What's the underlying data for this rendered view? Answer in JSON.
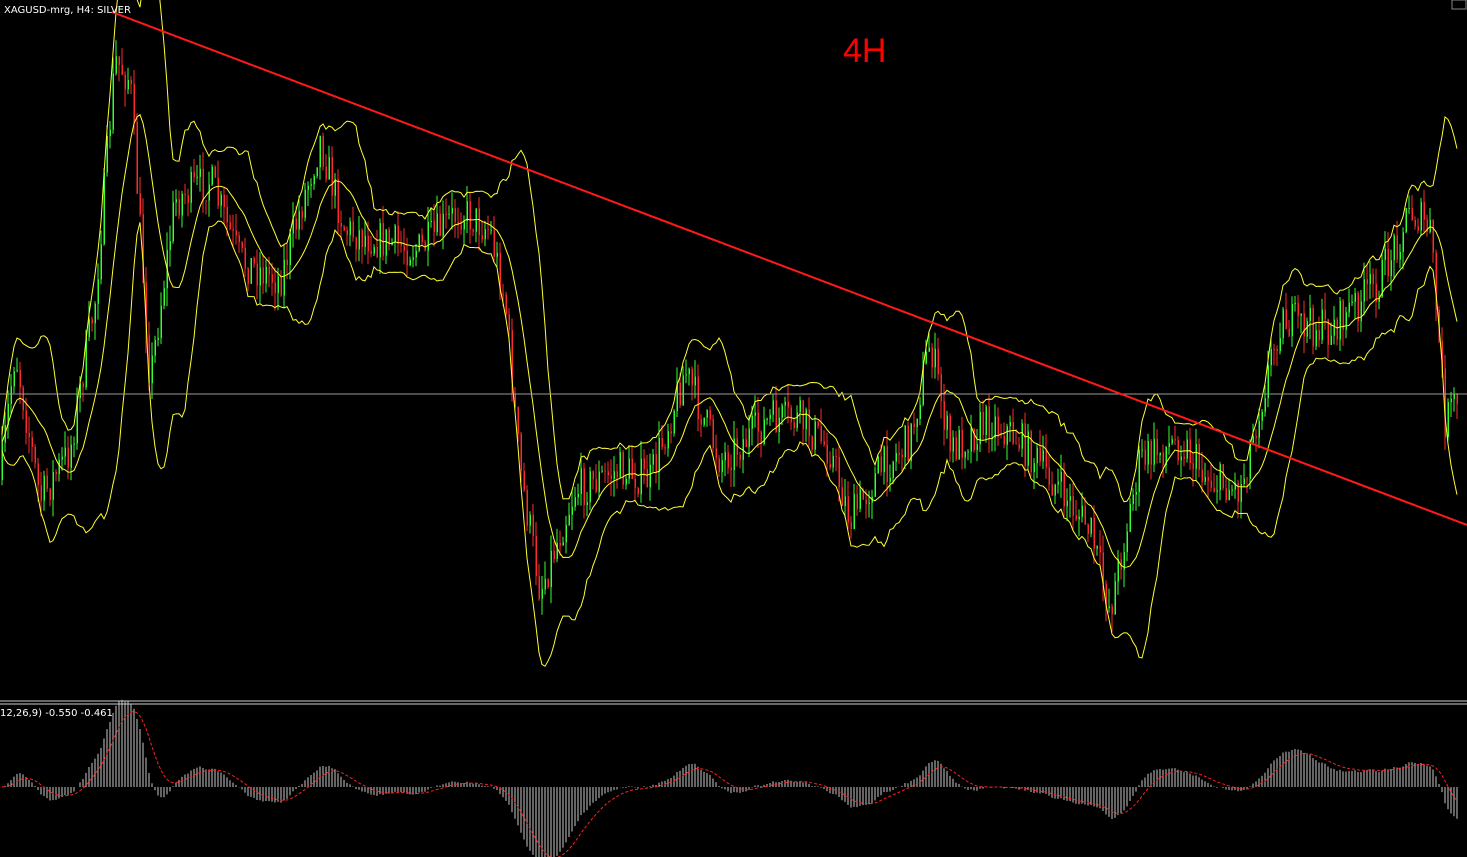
{
  "header": {
    "title": "XAGUSD-mrg, H4:  SILVER",
    "label": "4H"
  },
  "indicator": {
    "label": "12,26,9) -0.550 -0.461"
  }
}
